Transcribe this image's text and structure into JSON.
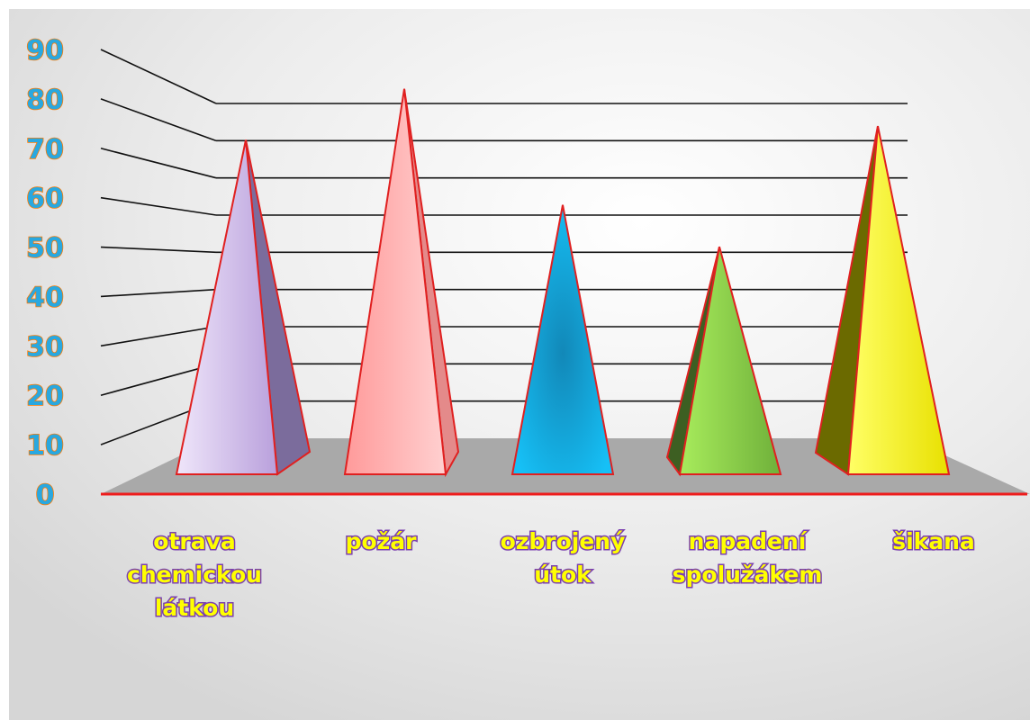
{
  "chart_data": {
    "type": "bar",
    "style": "3d-pyramid",
    "categories": [
      [
        "otrava",
        "chemickou",
        "látkou"
      ],
      [
        "požár"
      ],
      [
        "ozbrojený",
        "útok"
      ],
      [
        "napadení",
        "spolužákem"
      ],
      [
        "šikana"
      ]
    ],
    "values": [
      72,
      83,
      58,
      49,
      75
    ],
    "colors": [
      "#b9a3e0",
      "#ff8c8c",
      "#1fb7f0",
      "#8fd84a",
      "#f4f000"
    ],
    "ylim": [
      0,
      90
    ],
    "yticks": [
      "0",
      "10",
      "20",
      "30",
      "40",
      "50",
      "60",
      "70",
      "80",
      "90"
    ],
    "grid": true,
    "title": "",
    "xlabel": "",
    "ylabel": ""
  }
}
